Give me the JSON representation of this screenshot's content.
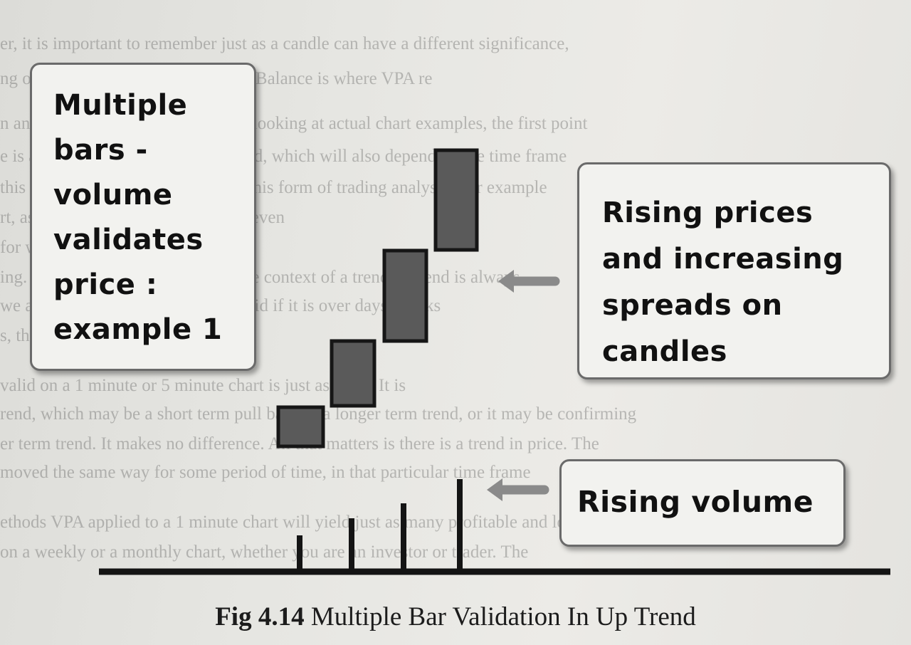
{
  "callouts": {
    "left": [
      "Multiple",
      "bars -",
      "volume",
      "validates",
      "price :",
      "example 1"
    ],
    "right": [
      "Rising prices",
      "and increasing",
      "spreads on",
      "candles"
    ],
    "bottom": [
      "Rising volume"
    ]
  },
  "caption": {
    "label": "Fig 4.14",
    "title": "Multiple Bar Validation In Up Trend"
  },
  "background_text": [
    "er, it is important to remember just as a candle can have a different significance,",
    "ng on where it appears in the trend. Balance is where VPA re",
    "n anomaly occurs and we will start looking at actual chart examples, the first point",
    "e is always where we are in the trend, which will also depend on the time frame",
    "this is one of the many beauties of this form of trading analysis. For example",
    "rt,                                      as one hour, an hour, or perhaps even",
    "                                         for weeks or months. There is",
    "ing. It is important to understand the context of a trend. A trend is always",
    "we are                                    only consider trend to be valid if it is over days, weeks",
    "s, the super trend",
    "                              valid on a 1 minute or 5 minute chart is just as valid. It is",
    "rend, which may be a short term pull back in a longer term trend, or it may be confirming",
    "er term trend. It makes no difference. All that matters is there is a trend in price. The",
    "moved the same way for some period of time, in that particular time frame",
    "ethods VPA applied to a 1 minute chart will yield just as many profitable and low risk",
    "on a weekly or a monthly chart, whether you are an investor or trader. The"
  ],
  "colors": {
    "candle_fill": "#5a5a5a",
    "candle_border": "#161616",
    "arrow": "#8a8a8a",
    "baseline": "#141414"
  },
  "icons": [
    "left-arrow-icon",
    "left-arrow-icon"
  ]
}
